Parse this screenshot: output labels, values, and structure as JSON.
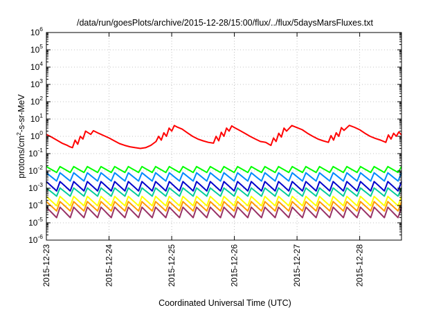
{
  "chart_data": {
    "type": "line",
    "title": "/data/run/goesPlots/archive/2015-12-28/15:00/flux/../flux/5daysMarsFluxes.txt",
    "xlabel": "Coordinated Universal Time (UTC)",
    "ylabel": "protons/cm2-s-sr-MeV",
    "ylabel_parts": {
      "before": "protons/cm",
      "sup": "2",
      "after": "-s-sr-MeV"
    },
    "yscale": "log",
    "ylim": [
      1e-06,
      1000000.0
    ],
    "xlim": [
      "2015-12-23",
      "2015-12-28 16:00"
    ],
    "grid": true,
    "y_ticks": [
      {
        "base": "10",
        "exp": "-6"
      },
      {
        "base": "10",
        "exp": "-5"
      },
      {
        "base": "10",
        "exp": "-4"
      },
      {
        "base": "10",
        "exp": "-3"
      },
      {
        "base": "10",
        "exp": "-2"
      },
      {
        "base": "10",
        "exp": "-1"
      },
      {
        "base": "10",
        "exp": "0"
      },
      {
        "base": "10",
        "exp": "1"
      },
      {
        "base": "10",
        "exp": "2"
      },
      {
        "base": "10",
        "exp": "3"
      },
      {
        "base": "10",
        "exp": "4"
      },
      {
        "base": "10",
        "exp": "5"
      },
      {
        "base": "10",
        "exp": "6"
      }
    ],
    "x_ticks": [
      "2015-12-23",
      "2015-12-24",
      "2015-12-25",
      "2015-12-26",
      "2015-12-27",
      "2015-12-28"
    ],
    "series": [
      {
        "color": "#ff0000",
        "x": [
          "2015-12-23 00:00",
          "2015-12-23 02:00",
          "2015-12-23 04:00",
          "2015-12-23 06:00",
          "2015-12-23 08:00",
          "2015-12-23 09:00",
          "2015-12-23 10:00",
          "2015-12-23 11:00",
          "2015-12-23 12:00",
          "2015-12-23 13:00",
          "2015-12-23 14:00",
          "2015-12-23 15:00",
          "2015-12-23 17:00",
          "2015-12-23 18:00",
          "2015-12-23 20:00",
          "2015-12-23 22:00",
          "2015-12-24 00:00",
          "2015-12-24 02:00",
          "2015-12-24 04:00",
          "2015-12-24 06:00",
          "2015-12-24 08:00",
          "2015-12-24 10:00",
          "2015-12-24 12:00",
          "2015-12-24 14:00",
          "2015-12-24 16:00",
          "2015-12-24 18:00",
          "2015-12-24 19:00",
          "2015-12-24 20:00",
          "2015-12-24 21:00",
          "2015-12-24 22:00",
          "2015-12-24 23:00",
          "2015-12-25 00:00",
          "2015-12-25 01:00",
          "2015-12-25 02:00",
          "2015-12-25 04:00",
          "2015-12-25 06:00",
          "2015-12-25 08:00",
          "2015-12-25 10:00",
          "2015-12-25 12:00",
          "2015-12-25 14:00",
          "2015-12-25 16:00",
          "2015-12-25 17:00",
          "2015-12-25 18:00",
          "2015-12-25 19:00",
          "2015-12-25 20:00",
          "2015-12-25 21:00",
          "2015-12-25 22:00",
          "2015-12-25 23:00",
          "2015-12-26 00:00",
          "2015-12-26 02:00",
          "2015-12-26 04:00",
          "2015-12-26 06:00",
          "2015-12-26 08:00",
          "2015-12-26 10:00",
          "2015-12-26 12:00",
          "2015-12-26 14:00",
          "2015-12-26 15:00",
          "2015-12-26 16:00",
          "2015-12-26 17:00",
          "2015-12-26 18:00",
          "2015-12-26 19:00",
          "2015-12-26 20:00",
          "2015-12-26 22:00",
          "2015-12-27 00:00",
          "2015-12-27 02:00",
          "2015-12-27 04:00",
          "2015-12-27 06:00",
          "2015-12-27 08:00",
          "2015-12-27 10:00",
          "2015-12-27 12:00",
          "2015-12-27 13:00",
          "2015-12-27 14:00",
          "2015-12-27 15:00",
          "2015-12-27 16:00",
          "2015-12-27 17:00",
          "2015-12-27 18:00",
          "2015-12-27 20:00",
          "2015-12-27 22:00",
          "2015-12-28 00:00",
          "2015-12-28 02:00",
          "2015-12-28 04:00",
          "2015-12-28 06:00",
          "2015-12-28 08:00",
          "2015-12-28 10:00",
          "2015-12-28 11:00",
          "2015-12-28 12:00",
          "2015-12-28 13:00",
          "2015-12-28 14:00",
          "2015-12-28 15:00",
          "2015-12-28 16:00"
        ],
        "y": [
          1.3,
          0.9,
          0.6,
          0.4,
          0.3,
          0.25,
          0.22,
          0.6,
          0.35,
          1.0,
          0.7,
          2.0,
          1.3,
          2.1,
          1.5,
          1.1,
          0.8,
          0.55,
          0.38,
          0.3,
          0.25,
          0.22,
          0.2,
          0.22,
          0.3,
          0.5,
          1.0,
          0.6,
          1.6,
          1.0,
          3.0,
          2.0,
          4.2,
          3.5,
          2.6,
          1.6,
          1.0,
          0.7,
          0.55,
          0.45,
          0.4,
          1.0,
          0.55,
          1.7,
          1.0,
          3.0,
          2.0,
          4.0,
          3.2,
          2.2,
          1.5,
          1.0,
          0.7,
          0.5,
          0.45,
          0.3,
          0.8,
          0.5,
          1.5,
          0.9,
          3.0,
          2.0,
          4.2,
          3.2,
          2.4,
          1.5,
          1.0,
          0.7,
          0.55,
          0.45,
          1.1,
          0.6,
          1.6,
          1.0,
          3.2,
          2.2,
          4.3,
          3.3,
          2.4,
          1.5,
          1.0,
          0.75,
          0.6,
          0.45,
          1.2,
          0.7,
          1.5,
          1.0,
          1.8,
          1.2
        ]
      },
      {
        "color": "#00ff00",
        "base": 0.012,
        "amp": 2.2
      },
      {
        "color": "#0088ff",
        "base": 0.0045,
        "amp": 3.0
      },
      {
        "color": "#0000cc",
        "base": 0.0013,
        "amp": 3.5
      },
      {
        "color": "#00cc99",
        "base": 0.0006,
        "amp": 3.0
      },
      {
        "color": "#ffff00",
        "base": 0.00018,
        "amp": 3.5
      },
      {
        "color": "#ff9900",
        "base": 9e-05,
        "amp": 3.5
      },
      {
        "color": "#993366",
        "base": 4e-05,
        "amp": 4.0
      }
    ]
  }
}
